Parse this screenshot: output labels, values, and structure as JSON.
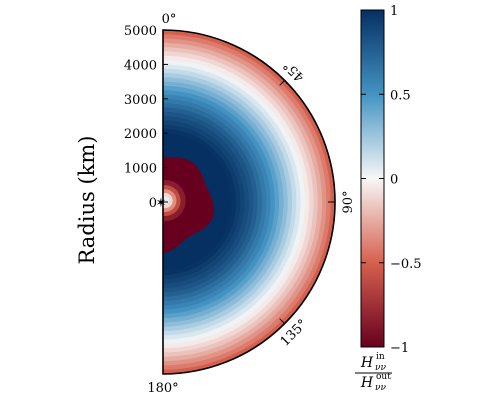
{
  "chart_data": {
    "type": "heatmap",
    "projection": "polar half-disk (0° at top, 90° at right, 180° at bottom)",
    "ylabel": "Radius (km)",
    "radial_ticks": [
      "0",
      "1000",
      "2000",
      "3000",
      "4000",
      "5000"
    ],
    "radial_tick_values": [
      0,
      1000,
      2000,
      3000,
      4000,
      5000
    ],
    "rlim": [
      0,
      5000
    ],
    "angle_ticks": [
      "0°",
      "45°",
      "90°",
      "135°",
      "180°"
    ],
    "angle_tick_values": [
      0,
      45,
      90,
      135,
      180
    ],
    "colorbar": {
      "ticks": [
        "1",
        "0.5",
        "0",
        "−0.5",
        "−1"
      ],
      "tick_values": [
        1,
        0.5,
        0,
        -0.5,
        -1
      ],
      "range": [
        -1,
        1
      ],
      "colormap": "RdBu",
      "label_main": "H",
      "label_sub": "νν",
      "label_sup_top": "in",
      "label_sup_bottom": "out"
    },
    "radial_profile": {
      "r": [
        0,
        200,
        450,
        500,
        700,
        1200,
        2000,
        2600,
        3200,
        3800,
        4400,
        4800,
        5000
      ],
      "value": [
        0.05,
        -0.45,
        -1.0,
        -1.0,
        -1.0,
        1.0,
        1.0,
        0.8,
        0.5,
        0.15,
        -0.15,
        -0.4,
        -0.55
      ]
    },
    "colors": {
      "strong_negative": "#67001f",
      "negative": "#d6604d",
      "neutral": "#f7f7f7",
      "positive": "#4393c3",
      "strong_positive": "#053061"
    }
  }
}
